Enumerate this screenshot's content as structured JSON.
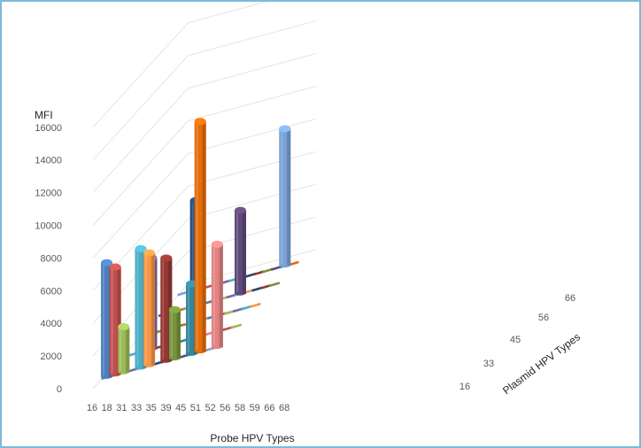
{
  "chart_data": {
    "type": "bar",
    "subtype": "3d-bar",
    "title": "",
    "ylabel": "MFI",
    "xlabel": "Probe HPV Types",
    "zlabel": "Plasmid HPV Types",
    "ylim": [
      0,
      16000
    ],
    "y_ticks": [
      "0",
      "2000",
      "4000",
      "6000",
      "8000",
      "10000",
      "12000",
      "14000",
      "16000"
    ],
    "categories": [
      "16",
      "18",
      "31",
      "33",
      "35",
      "39",
      "45",
      "51",
      "52",
      "56",
      "58",
      "59",
      "66",
      "68"
    ],
    "depth_categories": [
      "16",
      "33",
      "45",
      "56",
      "66"
    ],
    "grid": true,
    "bars": [
      {
        "probe": "16",
        "plasmid": "16",
        "value": 7000,
        "color": "#4a7ebb"
      },
      {
        "probe": "18",
        "plasmid": "16",
        "value": 6600,
        "color": "#c0504d"
      },
      {
        "probe": "31",
        "plasmid": "16",
        "value": 2800,
        "color": "#9bbb59"
      },
      {
        "probe": "33",
        "plasmid": "33",
        "value": 5600,
        "color": "#8064a2"
      },
      {
        "probe": "35",
        "plasmid": "16",
        "value": 7300,
        "color": "#4bacc6"
      },
      {
        "probe": "39",
        "plasmid": "16",
        "value": 6900,
        "color": "#f79646"
      },
      {
        "probe": "45",
        "plasmid": "45",
        "value": 7400,
        "color": "#1f497d"
      },
      {
        "probe": "51",
        "plasmid": "16",
        "value": 6300,
        "color": "#943634"
      },
      {
        "probe": "52",
        "plasmid": "16",
        "value": 3000,
        "color": "#77933c"
      },
      {
        "probe": "56",
        "plasmid": "56",
        "value": 5100,
        "color": "#5f497a"
      },
      {
        "probe": "58",
        "plasmid": "16",
        "value": 4300,
        "color": "#31859c"
      },
      {
        "probe": "59",
        "plasmid": "16",
        "value": 14100,
        "color": "#e46c0a"
      },
      {
        "probe": "66",
        "plasmid": "66",
        "value": 8400,
        "color": "#7aa2d6"
      },
      {
        "probe": "68",
        "plasmid": "16",
        "value": 6300,
        "color": "#e08381"
      }
    ],
    "dash_colors": [
      "#4a7ebb",
      "#c0504d",
      "#9bbb59",
      "#8064a2",
      "#4bacc6",
      "#f79646",
      "#1f497d",
      "#943634",
      "#77933c",
      "#5f497a",
      "#31859c",
      "#e46c0a",
      "#7aa2d6",
      "#e08381"
    ]
  }
}
